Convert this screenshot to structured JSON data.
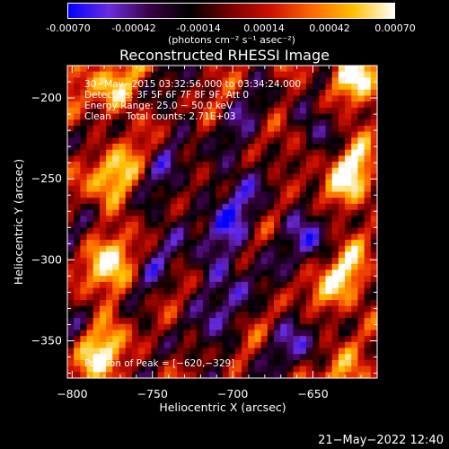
{
  "colorbar": {
    "ticks": [
      "-0.00070",
      "-0.00042",
      "-0.00014",
      "0.00014",
      "0.00042",
      "0.00070"
    ],
    "tick_values": [
      -0.0007,
      -0.00042,
      -0.00014,
      0.00014,
      0.00042,
      0.0007
    ],
    "units": "(photons cm⁻² s⁻¹ asec⁻²)",
    "colors": [
      "#0000ff",
      "#6a2ce0",
      "#3a0044",
      "#000000",
      "#7a0000",
      "#d01000",
      "#ff6a00",
      "#ffc000",
      "#ffffff"
    ]
  },
  "chart_data": {
    "type": "heatmap",
    "title": "Reconstructed RHESSI Image",
    "xlabel": "Heliocentric X (arcsec)",
    "ylabel": "Heliocentric Y (arcsec)",
    "xlim": [
      -803,
      -610
    ],
    "ylim": [
      -373,
      -180
    ],
    "x_ticks": [
      -800,
      -750,
      -700,
      -650
    ],
    "y_ticks": [
      -200,
      -250,
      -300,
      -350
    ],
    "x_tick_labels": [
      "−800",
      "−750",
      "−700",
      "−650"
    ],
    "y_tick_labels": [
      "−200",
      "−250",
      "−300",
      "−350"
    ],
    "value_range": [
      -0.0007,
      0.0007
    ],
    "peak": [
      -620,
      -329
    ],
    "annotations": [
      "30−May−2015 03:32:56.000 to 03:34:24.000",
      "Detectors: 3F 5F 6F 7F 8F 9F, Att 0",
      "Energy Range: 25.0 − 50.0 keV",
      "Clean     Total counts: 2.71E+03"
    ],
    "peak_label": "Position of Peak = [−620,−329]"
  },
  "timestamp": "21−May−2022 12:40"
}
